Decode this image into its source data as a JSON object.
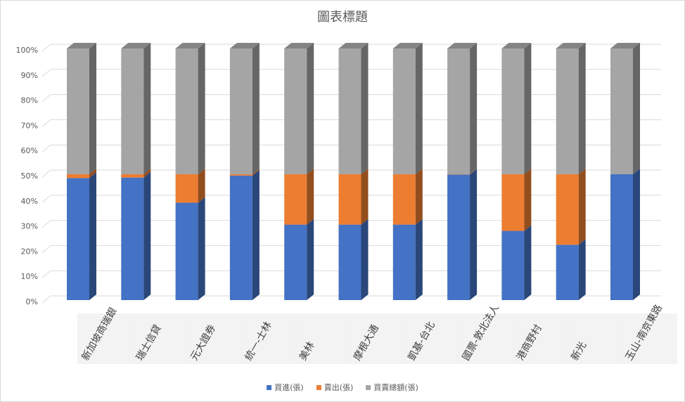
{
  "chart_data": {
    "type": "bar",
    "stacked": "percent",
    "style": "3d-column",
    "title": "圖表標題",
    "categories": [
      "新加坡商瑞銀",
      "瑞士信貸",
      "元大證券",
      "統一-士林",
      "美林",
      "摩根大通",
      "凱基-台北",
      "國票-敦北法人",
      "港商野村",
      "新光",
      "玉山-南京東路"
    ],
    "series": [
      {
        "name": "買進(張)",
        "color": "#4472C4",
        "values": [
          48.5,
          48.7,
          38.7,
          49.5,
          30,
          30,
          30,
          49.9,
          27.5,
          22,
          50
        ]
      },
      {
        "name": "賣出(張)",
        "color": "#ED7D31",
        "values": [
          1.5,
          1.3,
          11.3,
          0.5,
          20,
          20,
          20,
          0.1,
          22.5,
          28,
          0
        ]
      },
      {
        "name": "買賣總額(張)",
        "color": "#A5A5A5",
        "values": [
          50,
          50,
          50,
          50,
          50,
          50,
          50,
          50,
          50,
          50,
          50
        ]
      }
    ],
    "yticks": [
      "0%",
      "10%",
      "20%",
      "30%",
      "40%",
      "50%",
      "60%",
      "70%",
      "80%",
      "90%",
      "100%"
    ],
    "ylim": [
      0,
      100
    ],
    "grid": true,
    "legend_position": "bottom"
  }
}
